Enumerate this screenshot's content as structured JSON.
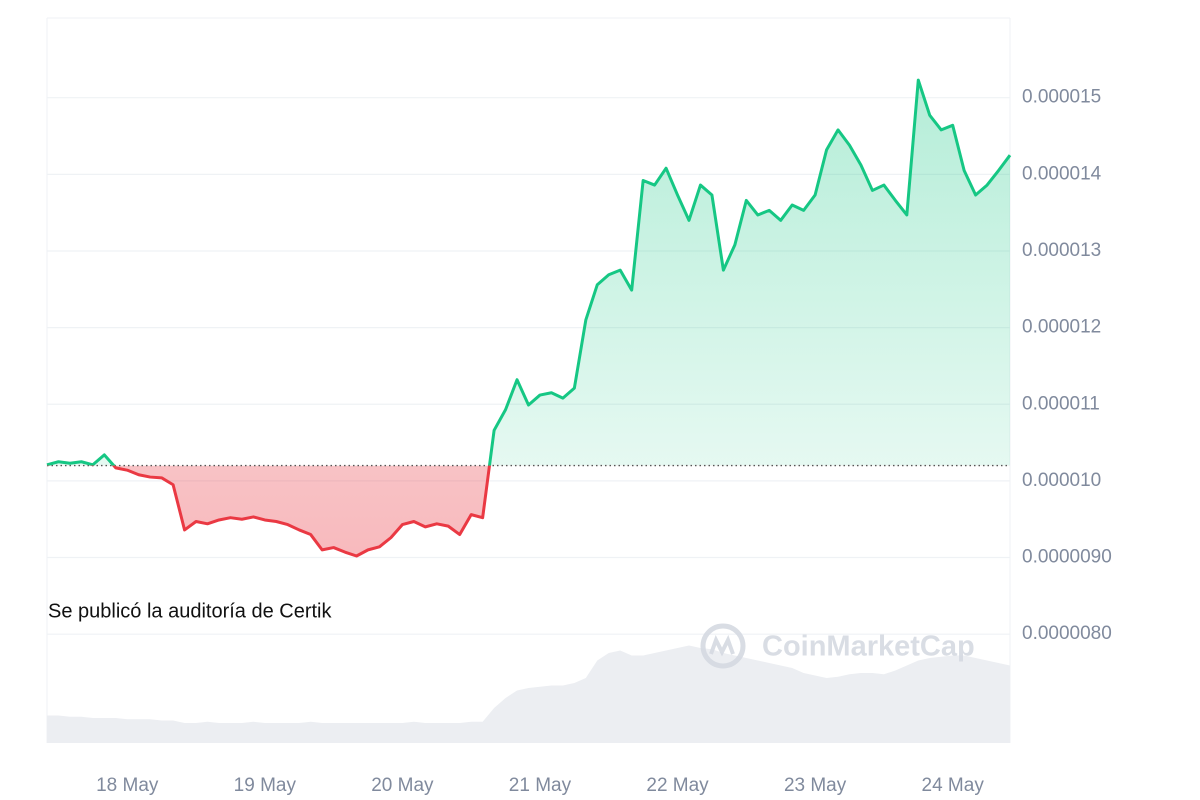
{
  "chart_data": {
    "type": "line",
    "categories": [
      null,
      null,
      null,
      null,
      null,
      null,
      null,
      "18 May",
      null,
      null,
      null,
      null,
      null,
      null,
      null,
      null,
      null,
      null,
      null,
      "19 May",
      null,
      null,
      null,
      null,
      null,
      null,
      null,
      null,
      null,
      null,
      null,
      "20 May",
      null,
      null,
      null,
      null,
      null,
      null,
      null,
      null,
      null,
      null,
      null,
      "21 May",
      null,
      null,
      null,
      null,
      null,
      null,
      null,
      null,
      null,
      null,
      null,
      "22 May",
      null,
      null,
      null,
      null,
      null,
      null,
      null,
      null,
      null,
      null,
      null,
      "23 May",
      null,
      null,
      null,
      null,
      null,
      null,
      null,
      null,
      null,
      null,
      null,
      "24 May",
      null,
      null,
      null,
      null,
      null
    ],
    "values": [
      1.021e-05,
      1.025e-05,
      1.023e-05,
      1.025e-05,
      1.021e-05,
      1.034e-05,
      1.017e-05,
      1.014e-05,
      1.008e-05,
      1.005e-05,
      1.004e-05,
      9.95e-06,
      9.36e-06,
      9.47e-06,
      9.44e-06,
      9.49e-06,
      9.52e-06,
      9.5e-06,
      9.53e-06,
      9.49e-06,
      9.47e-06,
      9.43e-06,
      9.36e-06,
      9.3e-06,
      9.1e-06,
      9.13e-06,
      9.07e-06,
      9.02e-06,
      9.1e-06,
      9.14e-06,
      9.26e-06,
      9.43e-06,
      9.47e-06,
      9.4e-06,
      9.44e-06,
      9.41e-06,
      9.3e-06,
      9.56e-06,
      9.52e-06,
      1.066e-05,
      1.093e-05,
      1.132e-05,
      1.099e-05,
      1.112e-05,
      1.115e-05,
      1.108e-05,
      1.121e-05,
      1.21e-05,
      1.256e-05,
      1.269e-05,
      1.275e-05,
      1.249e-05,
      1.392e-05,
      1.386e-05,
      1.408e-05,
      1.373e-05,
      1.34e-05,
      1.386e-05,
      1.373e-05,
      1.275e-05,
      1.308e-05,
      1.366e-05,
      1.347e-05,
      1.353e-05,
      1.34e-05,
      1.36e-05,
      1.353e-05,
      1.373e-05,
      1.432e-05,
      1.458e-05,
      1.438e-05,
      1.412e-05,
      1.379e-05,
      1.386e-05,
      1.366e-05,
      1.347e-05,
      1.523e-05,
      1.477e-05,
      1.458e-05,
      1.464e-05,
      1.405e-05,
      1.373e-05,
      1.386e-05,
      1.405e-05,
      1.425e-05
    ],
    "baseline": 1.02e-05,
    "up_color": "#16c784",
    "down_color": "#ea3943",
    "volume": [
      22,
      22,
      21,
      21,
      20,
      20,
      20,
      19,
      19,
      19,
      18,
      18,
      16,
      16,
      17,
      16,
      16,
      16,
      17,
      16,
      16,
      16,
      16,
      17,
      16,
      16,
      16,
      16,
      16,
      16,
      16,
      16,
      17,
      16,
      16,
      16,
      16,
      17,
      17,
      28,
      36,
      42,
      44,
      45,
      46,
      46,
      48,
      52,
      66,
      72,
      74,
      70,
      70,
      72,
      74,
      76,
      78,
      76,
      75,
      72,
      70,
      68,
      66,
      64,
      62,
      60,
      56,
      54,
      52,
      53,
      55,
      56,
      56,
      55,
      58,
      62,
      66,
      68,
      69,
      70,
      70,
      68,
      66,
      64,
      62
    ],
    "volume_color": "#eceef2",
    "vlim": [
      0,
      100
    ],
    "ylim": [
      6.58e-06,
      1.604e-05
    ],
    "yticks": [
      1.5e-05,
      1.4e-05,
      1.3e-05,
      1.2e-05,
      1.1e-05,
      {
        "value": 1e-05,
        "label": "0.000010"
      },
      {
        "value": 9e-06,
        "label": "0.0000090"
      },
      {
        "value": 8e-06,
        "label": "0.0000080"
      }
    ],
    "grid": true,
    "annotation": "Se publicó la auditoría de Certik",
    "watermark": "CoinMarketCap"
  }
}
